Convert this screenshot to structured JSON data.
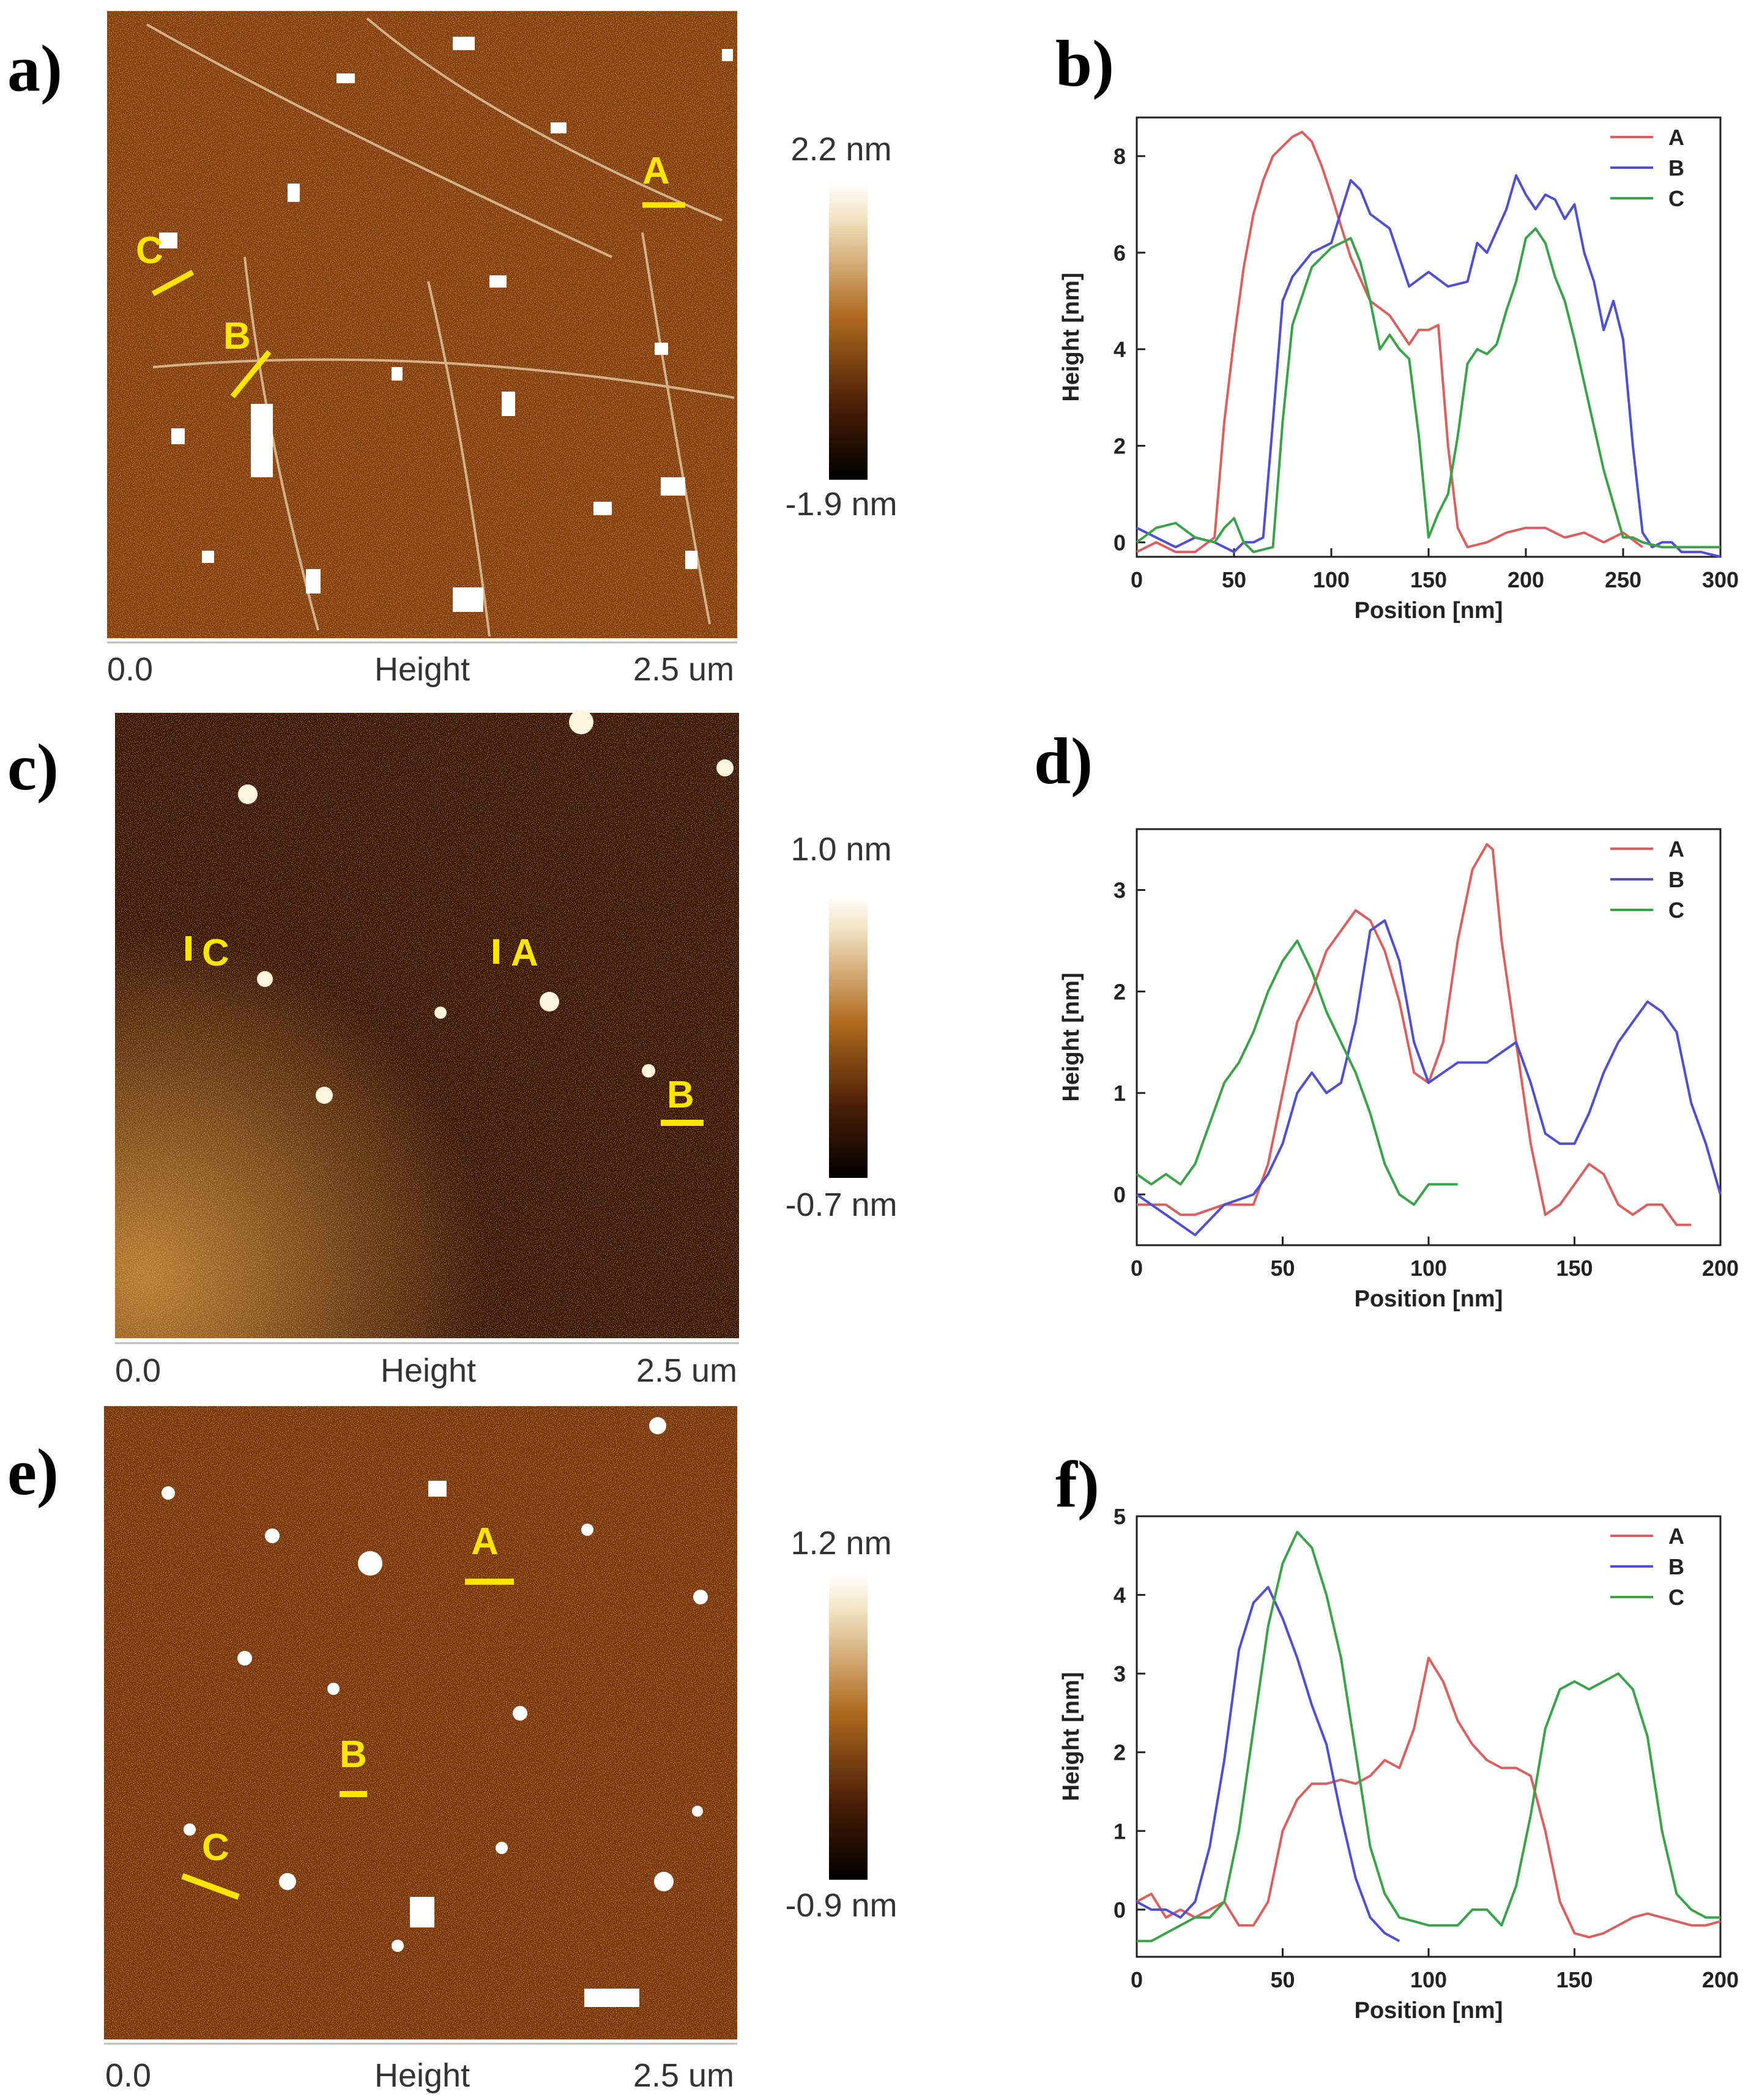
{
  "figure": {
    "panels": [
      {
        "id": "a",
        "label": "a)",
        "axis_start": "0.0",
        "axis_title": "Height",
        "axis_end": "2.5 um",
        "scale_max": "2.2 nm",
        "scale_min": "-1.9 nm",
        "markers": [
          {
            "letter": "A"
          },
          {
            "letter": "B"
          },
          {
            "letter": "C"
          }
        ]
      },
      {
        "id": "c",
        "label": "c)",
        "axis_start": "0.0",
        "axis_title": "Height",
        "axis_end": "2.5 um",
        "scale_max": "1.0 nm",
        "scale_min": "-0.7 nm",
        "markers": [
          {
            "letter": "A"
          },
          {
            "letter": "B"
          },
          {
            "letter": "C"
          }
        ]
      },
      {
        "id": "e",
        "label": "e)",
        "axis_start": "0.0",
        "axis_title": "Height",
        "axis_end": "2.5 um",
        "scale_max": "1.2 nm",
        "scale_min": "-0.9 nm",
        "markers": [
          {
            "letter": "A"
          },
          {
            "letter": "B"
          },
          {
            "letter": "C"
          }
        ]
      }
    ],
    "colors": {
      "A": "#d9605e",
      "B": "#4f4fd0",
      "C": "#3aa34a",
      "afm_dark": "#3c1a06",
      "afm_mid": "#8a3f0e",
      "afm_bright": "#d08a2a",
      "marker": "#ffe500"
    }
  },
  "chart_data": [
    {
      "type": "line",
      "label": "b)",
      "xlabel": "Position [nm]",
      "ylabel": "Height [nm]",
      "xlim": [
        0,
        300
      ],
      "ylim": [
        -0.3,
        8.8
      ],
      "xticks": [
        0,
        50,
        100,
        150,
        200,
        250,
        300
      ],
      "yticks": [
        0,
        2,
        4,
        6,
        8
      ],
      "series": [
        {
          "name": "A",
          "x": [
            0,
            10,
            20,
            30,
            40,
            45,
            50,
            55,
            60,
            65,
            70,
            80,
            85,
            90,
            95,
            100,
            110,
            120,
            130,
            140,
            145,
            150,
            155,
            160,
            165,
            170,
            180,
            190,
            200,
            210,
            220,
            230,
            240,
            250,
            260
          ],
          "y": [
            -0.2,
            0,
            -0.2,
            -0.2,
            0.1,
            2.5,
            4.2,
            5.7,
            6.8,
            7.5,
            8.0,
            8.4,
            8.5,
            8.3,
            7.8,
            7.2,
            5.9,
            5.0,
            4.7,
            4.1,
            4.4,
            4.4,
            4.5,
            2.0,
            0.3,
            -0.1,
            0,
            0.2,
            0.3,
            0.3,
            0.1,
            0.2,
            0,
            0.2,
            -0.1
          ]
        },
        {
          "name": "B",
          "x": [
            0,
            10,
            20,
            30,
            40,
            50,
            55,
            60,
            65,
            70,
            75,
            80,
            90,
            100,
            110,
            115,
            120,
            130,
            140,
            150,
            160,
            170,
            175,
            180,
            190,
            195,
            200,
            205,
            210,
            215,
            220,
            225,
            230,
            235,
            240,
            245,
            250,
            255,
            260,
            265,
            270,
            275,
            280,
            290,
            300
          ],
          "y": [
            0.3,
            0.1,
            -0.1,
            0.1,
            0,
            -0.2,
            0,
            0,
            0.1,
            2.5,
            5.0,
            5.5,
            6.0,
            6.2,
            7.5,
            7.3,
            6.8,
            6.5,
            5.3,
            5.6,
            5.3,
            5.4,
            6.2,
            6.0,
            6.9,
            7.6,
            7.2,
            6.9,
            7.2,
            7.1,
            6.7,
            7.0,
            6.0,
            5.4,
            4.4,
            5.0,
            4.2,
            2.0,
            0.2,
            -0.1,
            0,
            0,
            -0.2,
            -0.2,
            -0.3
          ]
        },
        {
          "name": "C",
          "x": [
            0,
            10,
            20,
            30,
            40,
            45,
            50,
            55,
            60,
            70,
            75,
            80,
            90,
            100,
            110,
            115,
            120,
            125,
            130,
            135,
            140,
            145,
            150,
            155,
            160,
            165,
            170,
            175,
            180,
            185,
            190,
            195,
            200,
            205,
            210,
            215,
            220,
            225,
            230,
            240,
            250,
            255,
            260,
            270,
            280,
            290,
            300
          ],
          "y": [
            0,
            0.3,
            0.4,
            0.1,
            0,
            0.3,
            0.5,
            0,
            -0.2,
            -0.1,
            2.5,
            4.5,
            5.7,
            6.1,
            6.3,
            5.8,
            5.0,
            4.0,
            4.3,
            4.0,
            3.8,
            2.2,
            0.1,
            0.6,
            1.0,
            2.2,
            3.7,
            4.0,
            3.9,
            4.1,
            4.8,
            5.4,
            6.3,
            6.5,
            6.2,
            5.5,
            5.0,
            4.2,
            3.3,
            1.5,
            0.1,
            0.1,
            0,
            -0.1,
            -0.1,
            -0.1,
            -0.1
          ]
        }
      ]
    },
    {
      "type": "line",
      "label": "d)",
      "xlabel": "Position [nm]",
      "ylabel": "Height [nm]",
      "xlim": [
        0,
        200
      ],
      "ylim": [
        -0.5,
        3.6
      ],
      "xticks": [
        0,
        50,
        100,
        150,
        200
      ],
      "yticks": [
        0,
        1,
        2,
        3
      ],
      "series": [
        {
          "name": "A",
          "x": [
            0,
            10,
            15,
            20,
            30,
            40,
            45,
            50,
            55,
            60,
            65,
            70,
            75,
            80,
            85,
            90,
            95,
            100,
            105,
            110,
            115,
            120,
            122,
            125,
            130,
            135,
            140,
            145,
            150,
            155,
            160,
            165,
            170,
            175,
            180,
            185,
            190
          ],
          "y": [
            -0.1,
            -0.1,
            -0.2,
            -0.2,
            -0.1,
            -0.1,
            0.3,
            1.0,
            1.7,
            2.0,
            2.4,
            2.6,
            2.8,
            2.7,
            2.4,
            1.9,
            1.2,
            1.1,
            1.5,
            2.5,
            3.2,
            3.45,
            3.4,
            2.5,
            1.5,
            0.5,
            -0.2,
            -0.1,
            0.1,
            0.3,
            0.2,
            -0.1,
            -0.2,
            -0.1,
            -0.1,
            -0.3,
            -0.3
          ]
        },
        {
          "name": "B",
          "x": [
            0,
            10,
            20,
            30,
            40,
            45,
            50,
            55,
            60,
            65,
            70,
            75,
            80,
            85,
            90,
            95,
            100,
            105,
            110,
            115,
            120,
            125,
            130,
            135,
            140,
            145,
            150,
            155,
            160,
            165,
            170,
            175,
            180,
            185,
            190,
            195,
            200
          ],
          "y": [
            0,
            -0.2,
            -0.4,
            -0.1,
            0,
            0.2,
            0.5,
            1.0,
            1.2,
            1.0,
            1.1,
            1.7,
            2.6,
            2.7,
            2.3,
            1.5,
            1.1,
            1.2,
            1.3,
            1.3,
            1.3,
            1.4,
            1.5,
            1.1,
            0.6,
            0.5,
            0.5,
            0.8,
            1.2,
            1.5,
            1.7,
            1.9,
            1.8,
            1.6,
            0.9,
            0.5,
            0
          ]
        },
        {
          "name": "C",
          "x": [
            0,
            5,
            10,
            15,
            20,
            25,
            30,
            35,
            40,
            45,
            50,
            55,
            60,
            65,
            70,
            75,
            80,
            85,
            90,
            95,
            100,
            105,
            110
          ],
          "y": [
            0.2,
            0.1,
            0.2,
            0.1,
            0.3,
            0.7,
            1.1,
            1.3,
            1.6,
            2.0,
            2.3,
            2.5,
            2.2,
            1.8,
            1.5,
            1.2,
            0.8,
            0.3,
            0,
            -0.1,
            0.1,
            0.1,
            0.1
          ]
        }
      ]
    },
    {
      "type": "line",
      "label": "f)",
      "xlabel": "Position [nm]",
      "ylabel": "Height [nm]",
      "xlim": [
        0,
        200
      ],
      "ylim": [
        -0.6,
        5
      ],
      "xticks": [
        0,
        50,
        100,
        150,
        200
      ],
      "yticks": [
        0,
        1,
        2,
        3,
        4,
        5
      ],
      "series": [
        {
          "name": "A",
          "x": [
            0,
            5,
            10,
            15,
            20,
            25,
            30,
            35,
            40,
            45,
            50,
            55,
            60,
            65,
            70,
            75,
            80,
            85,
            90,
            95,
            100,
            105,
            110,
            115,
            120,
            125,
            130,
            135,
            140,
            145,
            150,
            155,
            160,
            165,
            170,
            175,
            180,
            185,
            190,
            195,
            200
          ],
          "y": [
            0.1,
            0.2,
            -0.1,
            0,
            -0.1,
            0,
            0.1,
            -0.2,
            -0.2,
            0.1,
            1.0,
            1.4,
            1.6,
            1.6,
            1.65,
            1.6,
            1.7,
            1.9,
            1.8,
            2.3,
            3.2,
            2.9,
            2.4,
            2.1,
            1.9,
            1.8,
            1.8,
            1.7,
            1.0,
            0.1,
            -0.3,
            -0.35,
            -0.3,
            -0.2,
            -0.1,
            -0.05,
            -0.1,
            -0.15,
            -0.2,
            -0.2,
            -0.15
          ]
        },
        {
          "name": "B",
          "x": [
            0,
            5,
            10,
            15,
            20,
            25,
            30,
            35,
            40,
            45,
            50,
            55,
            60,
            65,
            70,
            75,
            80,
            85,
            90
          ],
          "y": [
            0.1,
            0,
            0,
            -0.1,
            0.1,
            0.8,
            1.9,
            3.3,
            3.9,
            4.1,
            3.7,
            3.2,
            2.6,
            2.1,
            1.2,
            0.4,
            -0.1,
            -0.3,
            -0.4
          ]
        },
        {
          "name": "C",
          "x": [
            0,
            5,
            10,
            15,
            20,
            25,
            30,
            35,
            40,
            45,
            50,
            55,
            60,
            65,
            70,
            75,
            80,
            85,
            90,
            95,
            100,
            105,
            110,
            115,
            120,
            125,
            130,
            135,
            140,
            145,
            150,
            155,
            160,
            165,
            170,
            175,
            180,
            185,
            190,
            195,
            200
          ],
          "y": [
            -0.4,
            -0.4,
            -0.3,
            -0.2,
            -0.1,
            -0.1,
            0.1,
            1.0,
            2.3,
            3.6,
            4.4,
            4.8,
            4.6,
            4.0,
            3.2,
            2.0,
            0.8,
            0.2,
            -0.1,
            -0.15,
            -0.2,
            -0.2,
            -0.2,
            0,
            0,
            -0.2,
            0.3,
            1.2,
            2.3,
            2.8,
            2.9,
            2.8,
            2.9,
            3.0,
            2.8,
            2.2,
            1.0,
            0.2,
            0,
            -0.1,
            -0.1
          ]
        }
      ]
    }
  ]
}
